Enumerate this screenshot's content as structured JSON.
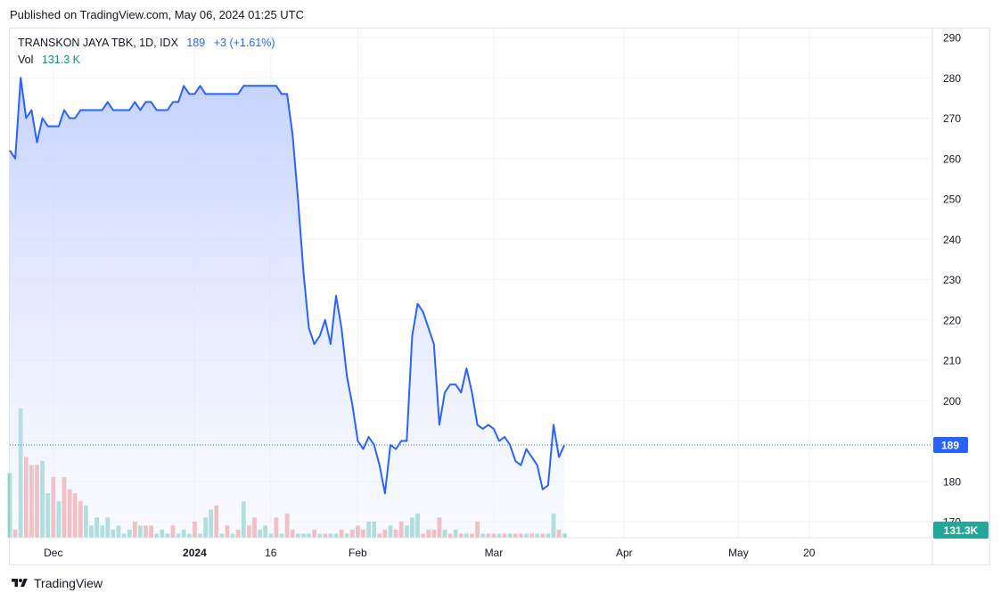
{
  "published": "Published on TradingView.com, May 06, 2024 01:25 UTC",
  "legend": {
    "symbol": "TRANSKON JAYA TBK, 1D, IDX",
    "price": "189",
    "change": "+3 (+1.61%)",
    "vol_label": "Vol",
    "vol_value": "131.3 K"
  },
  "brand": "TradingView",
  "colors": {
    "line": "#2962ff",
    "area_top": "#c7d4ff",
    "vol_up": "#8dd4cc",
    "vol_down": "#f3a3a3",
    "vol_badge": "#26a69a",
    "price_badge": "#2962ff",
    "grid": "#f0f3fa",
    "axis_text": "#131722"
  },
  "chart_data": {
    "type": "area",
    "title": "",
    "xlabel": "",
    "ylabel": "",
    "ylim": [
      167,
      292
    ],
    "y_ticks": [
      290,
      280,
      270,
      260,
      250,
      240,
      230,
      220,
      210,
      200,
      190,
      180,
      170
    ],
    "x_ticks": [
      {
        "label": "Dec",
        "index": 8
      },
      {
        "label": "2024",
        "index": 34
      },
      {
        "label": "16",
        "index": 48
      },
      {
        "label": "Feb",
        "index": 64
      },
      {
        "label": "Mar",
        "index": 89
      },
      {
        "label": "Apr",
        "index": 113
      },
      {
        "label": "May",
        "index": 134
      },
      {
        "label": "20",
        "index": 147
      }
    ],
    "bold_ticks": [
      "2024"
    ],
    "last_price": 189,
    "last_price_label": "189",
    "last_volume_label": "131.3K",
    "series": [
      {
        "kind": "close",
        "values": [
          262,
          260,
          280,
          270,
          272,
          264,
          270,
          268,
          268,
          268,
          272,
          270,
          270,
          272,
          272,
          272,
          272,
          272,
          274,
          272,
          272,
          272,
          272,
          274,
          272,
          274,
          274,
          272,
          272,
          272,
          274,
          274,
          278,
          276,
          276,
          278,
          276,
          276,
          276,
          276,
          276,
          276,
          276,
          278,
          278,
          278,
          278,
          278,
          278,
          278,
          276,
          276,
          266,
          250,
          232,
          218,
          214,
          216,
          220,
          214,
          226,
          218,
          206,
          199,
          190,
          188,
          191,
          189,
          184,
          177,
          189,
          188,
          190,
          190,
          216,
          224,
          222,
          218,
          214,
          194,
          202,
          204,
          204,
          202,
          208,
          202,
          194,
          193,
          194,
          193,
          190,
          191,
          189,
          185,
          184,
          188,
          186,
          184,
          178,
          179,
          194,
          186,
          189
        ]
      },
      {
        "kind": "volume",
        "values": [
          16,
          2,
          32,
          20,
          18,
          18,
          19,
          11,
          15,
          9,
          15,
          12,
          11,
          9,
          8,
          3,
          5,
          3,
          5,
          2,
          3,
          1,
          2,
          4,
          3,
          3,
          3,
          1,
          2,
          1,
          3,
          1,
          2,
          1,
          4,
          1,
          5,
          7,
          8,
          1,
          3,
          1,
          2,
          9,
          3,
          5,
          2,
          3,
          1,
          5,
          1,
          6,
          2,
          1,
          1,
          1,
          2,
          1,
          1,
          1,
          1,
          2,
          1,
          2,
          3,
          2,
          4,
          4,
          1,
          2,
          3,
          2,
          4,
          3,
          5,
          6,
          1,
          2,
          2,
          5,
          2,
          1,
          2,
          1,
          1,
          1,
          4,
          1,
          1,
          1,
          1,
          1,
          1,
          1,
          1,
          1,
          1,
          1,
          1,
          1,
          6,
          2,
          1
        ]
      },
      {
        "kind": "volume_up",
        "values": [
          1,
          0,
          1,
          0,
          0,
          0,
          1,
          1,
          0,
          1,
          0,
          0,
          0,
          0,
          1,
          1,
          1,
          1,
          1,
          1,
          1,
          1,
          1,
          0,
          1,
          0,
          0,
          1,
          1,
          1,
          0,
          1,
          1,
          1,
          0,
          1,
          1,
          1,
          0,
          1,
          0,
          1,
          0,
          1,
          0,
          0,
          1,
          1,
          1,
          0,
          1,
          0,
          0,
          1,
          1,
          1,
          0,
          1,
          0,
          1,
          1,
          0,
          1,
          0,
          0,
          0,
          1,
          1,
          0,
          0,
          1,
          0,
          0,
          1,
          1,
          1,
          0,
          0,
          0,
          0,
          1,
          0,
          1,
          0,
          1,
          0,
          0,
          1,
          0,
          0,
          1,
          0,
          1,
          0,
          0,
          1,
          0,
          1,
          0,
          1,
          1,
          0,
          1
        ]
      }
    ]
  }
}
